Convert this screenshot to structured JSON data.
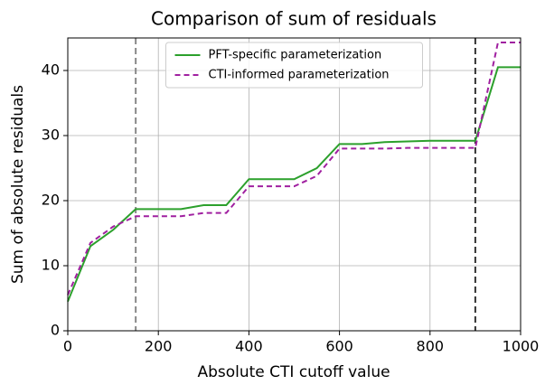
{
  "chart_data": {
    "type": "line",
    "title": "Comparison of sum of residuals",
    "x_label": "Absolute CTI cutoff value",
    "y_label": "Sum of absolute residuals",
    "x": [
      0,
      50,
      100,
      150,
      200,
      250,
      300,
      350,
      400,
      450,
      500,
      550,
      600,
      650,
      700,
      750,
      800,
      850,
      900,
      950,
      1000
    ],
    "series": [
      {
        "name": "PFT-specific parameterization",
        "color": "#2ca02c",
        "dash": "none",
        "values": [
          4.5,
          13,
          15.5,
          18.7,
          18.7,
          18.7,
          19.3,
          19.3,
          23.3,
          23.3,
          23.3,
          25,
          28.7,
          28.7,
          29,
          29.1,
          29.2,
          29.2,
          29.2,
          40.5,
          40.5
        ]
      },
      {
        "name": "CTI-informed parameterization",
        "color": "#a020a0",
        "dash": "6,4",
        "values": [
          5.5,
          13.5,
          16,
          17.6,
          17.6,
          17.6,
          18.1,
          18.1,
          22.2,
          22.2,
          22.2,
          23.8,
          28,
          28,
          28,
          28.1,
          28.1,
          28.1,
          28.1,
          44.3,
          44.3
        ]
      }
    ],
    "vlines": [
      {
        "value": 150,
        "color": "#888888"
      },
      {
        "value": 900,
        "color": "#333333"
      }
    ],
    "xlim": [
      0,
      1000
    ],
    "xticks": [
      0,
      200,
      400,
      600,
      800,
      1000
    ],
    "ylim": [
      0,
      45
    ],
    "yticks": [
      0,
      10,
      20,
      30,
      40
    ],
    "grid": true,
    "legend": "upper center"
  }
}
